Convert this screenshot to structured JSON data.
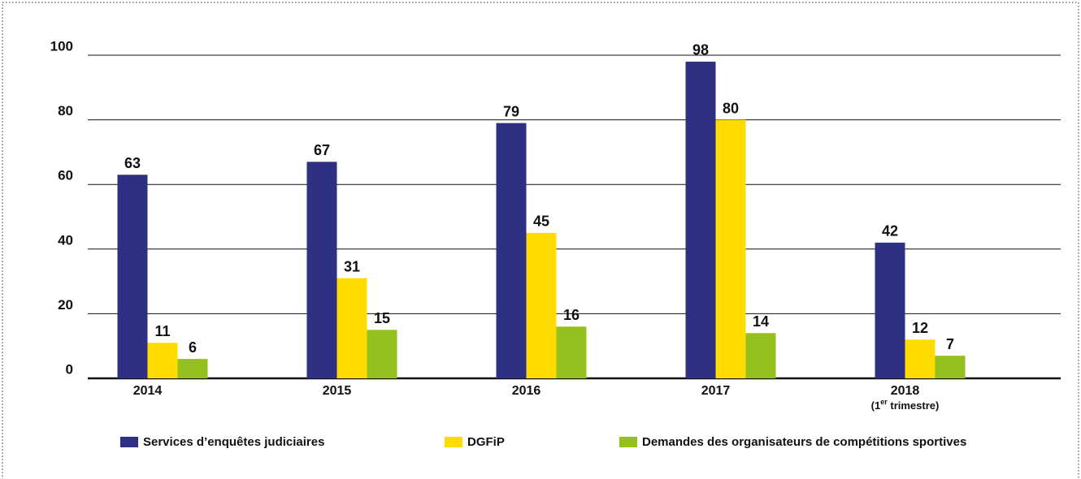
{
  "chart_data": {
    "type": "bar",
    "categories": [
      "2014",
      "2015",
      "2016",
      "2017",
      "2018"
    ],
    "category_notes": [
      null,
      null,
      null,
      null,
      "(1er trimestre)"
    ],
    "series": [
      {
        "name": "Services d’enquêtes judiciaires",
        "color": "#2e3083",
        "values": [
          63,
          67,
          79,
          98,
          42
        ]
      },
      {
        "name": "DGFiP",
        "color": "#ffdc00",
        "values": [
          11,
          31,
          45,
          80,
          12
        ]
      },
      {
        "name": "Demandes des organisateurs de compétitions sportives",
        "color": "#95c11f",
        "values": [
          6,
          15,
          16,
          14,
          7
        ]
      }
    ],
    "ylim": [
      0,
      100
    ],
    "yticks": [
      0,
      20,
      40,
      60,
      80,
      100
    ],
    "grid": true,
    "legend": "bottom"
  }
}
